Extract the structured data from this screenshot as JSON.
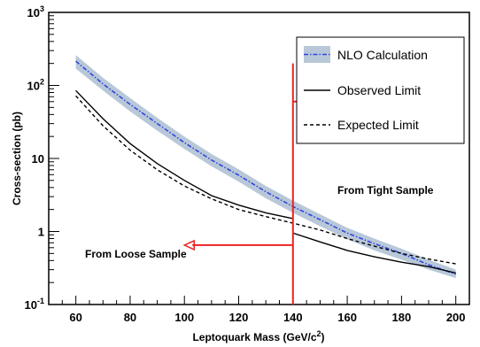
{
  "chart_data": {
    "type": "line",
    "title": "",
    "xlabel": "Leptoquark Mass (GeV/c",
    "xlabel_sup": "2",
    "xlabel_suffix": ")",
    "ylabel": "Cross-section (pb)",
    "xlim": [
      50,
      205
    ],
    "ylim": [
      0.1,
      1000
    ],
    "yscale": "log",
    "grid": false,
    "legend_position": "top-right",
    "x_ticks": [
      "60",
      "80",
      "100",
      "120",
      "140",
      "160",
      "180",
      "200"
    ],
    "y_ticks": {
      "decade_base": "10",
      "decade_exp_top": "3",
      "decade_exp_bottom": "-1",
      "labels": [
        "10",
        "1"
      ]
    },
    "series": [
      {
        "name": "NLO Calculation",
        "style": "dash-dot",
        "color": "#3344dd",
        "band_color": "#b8c8d8",
        "x": [
          60,
          70,
          80,
          90,
          100,
          110,
          120,
          130,
          140,
          150,
          160,
          170,
          180,
          190,
          200
        ],
        "y": [
          215,
          105,
          55,
          30,
          16.5,
          9.5,
          5.9,
          3.5,
          2.2,
          1.45,
          0.95,
          0.68,
          0.5,
          0.35,
          0.26
        ],
        "band_lower": [
          170,
          85,
          44,
          24,
          13.5,
          7.8,
          4.8,
          2.85,
          1.8,
          1.18,
          0.78,
          0.55,
          0.41,
          0.3,
          0.23
        ],
        "band_upper": [
          260,
          127,
          67,
          36,
          20,
          11.5,
          7.1,
          4.2,
          2.65,
          1.72,
          1.12,
          0.8,
          0.58,
          0.41,
          0.3
        ]
      },
      {
        "name": "Observed Limit",
        "style": "solid",
        "color": "#000000",
        "x": [
          60,
          70,
          80,
          90,
          100,
          110,
          120,
          130,
          140,
          140.01,
          150,
          160,
          170,
          180,
          190,
          200
        ],
        "y": [
          85,
          35,
          16,
          8.5,
          5,
          3.1,
          2.3,
          1.8,
          1.5,
          0.95,
          0.72,
          0.55,
          0.45,
          0.38,
          0.33,
          0.27
        ]
      },
      {
        "name": "Expected Limit",
        "style": "dashed",
        "color": "#000000",
        "x": [
          60,
          70,
          80,
          90,
          100,
          110,
          120,
          130,
          140,
          150,
          160,
          170,
          180,
          190,
          200
        ],
        "y": [
          72,
          28,
          13,
          7,
          4.2,
          2.8,
          2,
          1.6,
          1.3,
          1.05,
          0.8,
          0.63,
          0.5,
          0.42,
          0.36
        ]
      }
    ],
    "annotations": [
      {
        "text": "From Tight Sample",
        "arrow_from_x": 140,
        "arrow_to_x": 180,
        "arrow_y": 60,
        "color": "#ee2222"
      },
      {
        "text": "From Loose Sample",
        "arrow_from_x": 140,
        "arrow_to_x": 100,
        "arrow_y": 0.65,
        "color": "#ee2222"
      }
    ],
    "divider_x": 140
  }
}
